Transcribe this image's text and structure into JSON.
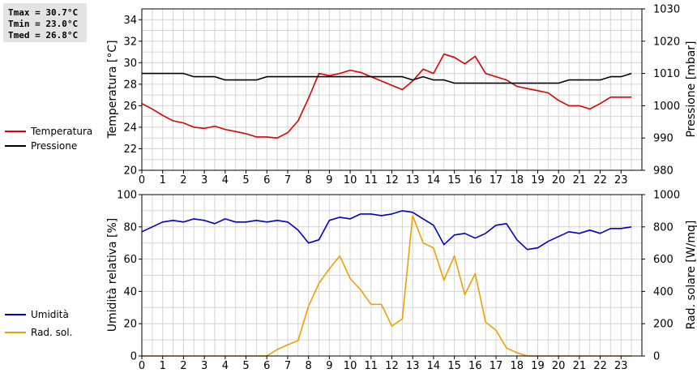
{
  "stats": {
    "tmax": "Tmax = 30.7°C",
    "tmin": "Tmin = 23.0°C",
    "tmed": "Tmed = 26.8°C"
  },
  "colors": {
    "temperature": "#e00000",
    "pressure": "#000000",
    "humidity": "#0000c8",
    "radiation": "#f0a000",
    "grid": "#d4d4d4",
    "stats_bg": "#e4e4e4"
  },
  "chart_data": [
    {
      "type": "line",
      "name": "temperature-pressure",
      "x_ticks": [
        "0",
        "1",
        "2",
        "3",
        "4",
        "5",
        "6",
        "7",
        "8",
        "9",
        "10",
        "11",
        "12",
        "13",
        "14",
        "15",
        "16",
        "17",
        "18",
        "19",
        "20",
        "21",
        "22",
        "23"
      ],
      "xlim": [
        0,
        24
      ],
      "ylabel": "Temperatura [°C]",
      "ylim": [
        20,
        35
      ],
      "yticks": [
        "20",
        "22",
        "24",
        "26",
        "28",
        "30",
        "32",
        "34"
      ],
      "y2label": "Pressione [mbar]",
      "y2lim": [
        980,
        1030
      ],
      "y2ticks": [
        "980",
        "990",
        "1000",
        "1010",
        "1020",
        "1030"
      ],
      "grid": true,
      "legend": "left",
      "series": [
        {
          "name": "Temperatura",
          "axis": "left",
          "color": "#e00000",
          "x": [
            0,
            0.5,
            1,
            1.5,
            2,
            2.5,
            3,
            3.5,
            4,
            4.5,
            5,
            5.5,
            6,
            6.5,
            7,
            7.5,
            8,
            8.5,
            9,
            9.5,
            10,
            10.5,
            11,
            11.5,
            12,
            12.5,
            13,
            13.5,
            14,
            14.5,
            15,
            15.5,
            16,
            16.5,
            17,
            17.5,
            18,
            18.5,
            19,
            19.5,
            20,
            20.5,
            21,
            21.5,
            22,
            22.5,
            23,
            23.5
          ],
          "y": [
            26.2,
            25.7,
            25.1,
            24.6,
            24.4,
            24.0,
            23.9,
            24.1,
            23.8,
            23.6,
            23.4,
            23.1,
            23.1,
            23.0,
            23.5,
            24.6,
            26.7,
            29.0,
            28.8,
            29.0,
            29.3,
            29.1,
            28.7,
            28.3,
            27.9,
            27.5,
            28.3,
            29.4,
            29.0,
            30.8,
            30.5,
            29.9,
            30.6,
            29.0,
            28.7,
            28.4,
            27.8,
            27.6,
            27.4,
            27.2,
            26.5,
            26.0,
            26.0,
            25.7,
            26.2,
            26.8,
            26.8,
            26.8
          ]
        },
        {
          "name": "Pressione",
          "axis": "right",
          "color": "#000000",
          "x": [
            0,
            0.5,
            1,
            1.5,
            2,
            2.5,
            3,
            3.5,
            4,
            4.5,
            5,
            5.5,
            6,
            6.5,
            7,
            7.5,
            8,
            8.5,
            9,
            9.5,
            10,
            10.5,
            11,
            11.5,
            12,
            12.5,
            13,
            13.5,
            14,
            14.5,
            15,
            15.5,
            16,
            16.5,
            17,
            17.5,
            18,
            18.5,
            19,
            19.5,
            20,
            20.5,
            21,
            21.5,
            22,
            22.5,
            23,
            23.5
          ],
          "y": [
            1010,
            1010,
            1010,
            1010,
            1010,
            1009,
            1009,
            1009,
            1008,
            1008,
            1008,
            1008,
            1009,
            1009,
            1009,
            1009,
            1009,
            1009,
            1009,
            1009,
            1009,
            1009,
            1009,
            1009,
            1009,
            1009,
            1008,
            1009,
            1008,
            1008,
            1007,
            1007,
            1007,
            1007,
            1007,
            1007,
            1007,
            1007,
            1007,
            1007,
            1007,
            1008,
            1008,
            1008,
            1008,
            1009,
            1009,
            1010
          ]
        }
      ]
    },
    {
      "type": "line",
      "name": "humidity-radiation",
      "x_ticks": [
        "0",
        "1",
        "2",
        "3",
        "4",
        "5",
        "6",
        "7",
        "8",
        "9",
        "10",
        "11",
        "12",
        "13",
        "14",
        "15",
        "16",
        "17",
        "18",
        "19",
        "20",
        "21",
        "22",
        "23"
      ],
      "xlim": [
        0,
        24
      ],
      "ylabel": "Umidità relativa [%]",
      "ylim": [
        0,
        100
      ],
      "yticks": [
        "0",
        "20",
        "40",
        "60",
        "80",
        "100"
      ],
      "y2label": "Rad. solare [W/mq]",
      "y2lim": [
        0,
        1000
      ],
      "y2ticks": [
        "0",
        "200",
        "400",
        "600",
        "800",
        "1000"
      ],
      "grid": true,
      "legend": "left",
      "series": [
        {
          "name": "Umidità",
          "axis": "left",
          "color": "#0000c8",
          "x": [
            0,
            0.5,
            1,
            1.5,
            2,
            2.5,
            3,
            3.5,
            4,
            4.5,
            5,
            5.5,
            6,
            6.5,
            7,
            7.5,
            8,
            8.5,
            9,
            9.5,
            10,
            10.5,
            11,
            11.5,
            12,
            12.5,
            13,
            13.5,
            14,
            14.5,
            15,
            15.5,
            16,
            16.5,
            17,
            17.5,
            18,
            18.5,
            19,
            19.5,
            20,
            20.5,
            21,
            21.5,
            22,
            22.5,
            23,
            23.5
          ],
          "y": [
            77,
            80,
            83,
            84,
            83,
            85,
            84,
            82,
            85,
            83,
            83,
            84,
            83,
            84,
            83,
            78,
            70,
            72,
            84,
            86,
            85,
            88,
            88,
            87,
            88,
            90,
            89,
            85,
            81,
            69,
            75,
            76,
            73,
            76,
            81,
            82,
            72,
            66,
            67,
            71,
            74,
            77,
            76,
            78,
            76,
            79,
            79,
            80
          ]
        },
        {
          "name": "Rad. sol.",
          "axis": "right",
          "color": "#f0a000",
          "x": [
            0,
            0.5,
            1,
            1.5,
            2,
            2.5,
            3,
            3.5,
            4,
            4.5,
            5,
            5.5,
            6,
            6.5,
            7,
            7.5,
            8,
            8.5,
            9,
            9.5,
            10,
            10.5,
            11,
            11.5,
            12,
            12.5,
            13,
            13.5,
            14,
            14.5,
            15,
            15.5,
            16,
            16.5,
            17,
            17.5,
            18,
            18.5,
            19,
            19.5,
            20,
            20.5,
            21,
            21.5,
            22,
            22.5,
            23,
            23.5
          ],
          "y": [
            0,
            0,
            0,
            0,
            0,
            0,
            0,
            0,
            0,
            0,
            0,
            0,
            0,
            40,
            70,
            95,
            310,
            450,
            540,
            620,
            480,
            410,
            320,
            320,
            185,
            230,
            870,
            700,
            670,
            470,
            620,
            380,
            510,
            210,
            160,
            50,
            20,
            0,
            0,
            0,
            0,
            0,
            0,
            0,
            0,
            0,
            0,
            0
          ]
        }
      ]
    }
  ]
}
